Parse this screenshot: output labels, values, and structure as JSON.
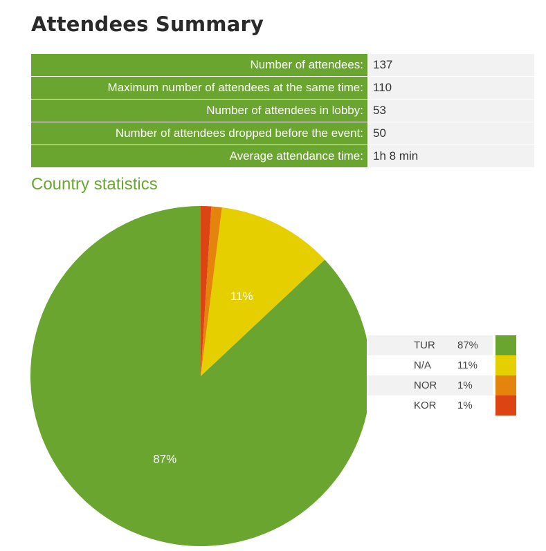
{
  "page": {
    "title": "Attendees Summary",
    "section_title": "Country statistics"
  },
  "summary": [
    {
      "label": "Number of attendees:",
      "value": "137"
    },
    {
      "label": "Maximum number of attendees at the same time:",
      "value": "110"
    },
    {
      "label": "Number of attendees in lobby:",
      "value": "53"
    },
    {
      "label": "Number of attendees dropped before the event:",
      "value": "50"
    },
    {
      "label": "Average attendance time:",
      "value": "1h 8 min"
    }
  ],
  "colors": {
    "accent": "#6aa62f",
    "row_bg": "#f3f2f3"
  },
  "chart_data": {
    "type": "pie",
    "title": "Country statistics",
    "slices": [
      {
        "code": "TUR",
        "value": 87,
        "label": "87%",
        "color": "#6aa62f",
        "show_label": true
      },
      {
        "code": "N/A",
        "value": 11,
        "label": "11%",
        "color": "#e6cf00",
        "show_label": true
      },
      {
        "code": "NOR",
        "value": 1,
        "label": "1%",
        "color": "#e5840c",
        "show_label": false
      },
      {
        "code": "KOR",
        "value": 1,
        "label": "1%",
        "color": "#dd4414",
        "show_label": false
      }
    ],
    "legend_position": "right"
  }
}
